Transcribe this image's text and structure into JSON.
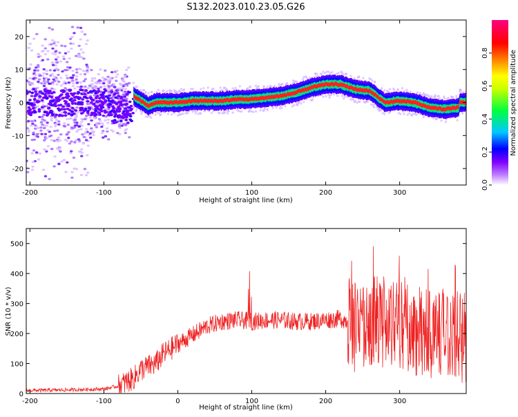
{
  "title": "S132.2023.010.23.05.G26",
  "chart_data": [
    {
      "type": "heatmap",
      "xlabel": "Height of straight line (km)",
      "ylabel": "Frequency (Hz)",
      "xlim": [
        -205,
        390
      ],
      "ylim": [
        -25,
        25
      ],
      "xticks": [
        -200,
        -100,
        0,
        100,
        200,
        300
      ],
      "yticks": [
        -20,
        -10,
        0,
        10,
        20
      ],
      "colorbar": {
        "label": "Normalized spectral amplitude",
        "range": [
          0,
          1
        ],
        "ticks": [
          "0.0",
          "0.2",
          "0.4",
          "0.6",
          "0.8"
        ],
        "colormap": [
          "#ffffff",
          "#8000ff",
          "#0000ff",
          "#00ffff",
          "#00ff00",
          "#ffff00",
          "#ff8000",
          "#ff0000",
          "#ff0080"
        ]
      },
      "ridge": {
        "x": [
          -60,
          -50,
          -40,
          -30,
          -20,
          0,
          20,
          40,
          60,
          80,
          100,
          120,
          140,
          160,
          180,
          200,
          220,
          240,
          260,
          280,
          300,
          320,
          340,
          360,
          380
        ],
        "y": [
          2,
          0.5,
          -1,
          0,
          0,
          0,
          0.5,
          0.5,
          0.5,
          1,
          1,
          1.5,
          2,
          3,
          4.5,
          5.5,
          5.5,
          4,
          3.5,
          0,
          0.5,
          0,
          -1.5,
          -2,
          -1.5
        ]
      },
      "grid": false
    },
    {
      "type": "line",
      "xlabel": "Height of straight line (km)",
      "ylabel": "SNR (10 * v/v)",
      "xlim": [
        -205,
        390
      ],
      "ylim": [
        0,
        550
      ],
      "xticks": [
        -200,
        -100,
        0,
        100,
        200,
        300
      ],
      "yticks": [
        0,
        100,
        200,
        300,
        400,
        500
      ],
      "color": "#ef2020",
      "series": [
        {
          "x": [
            -205,
            -150,
            -100,
            -80,
            -60,
            -50,
            -40,
            -30,
            -20,
            0,
            20,
            40,
            60,
            80,
            100,
            120,
            140,
            160,
            180,
            200,
            220,
            240,
            260,
            280,
            300,
            320,
            340,
            360,
            380,
            390
          ],
          "values": [
            10,
            12,
            15,
            25,
            50,
            80,
            90,
            100,
            130,
            165,
            195,
            225,
            240,
            245,
            240,
            245,
            245,
            240,
            240,
            245,
            250,
            230,
            240,
            250,
            230,
            210,
            200,
            210,
            200,
            210
          ]
        }
      ],
      "grid": false
    }
  ]
}
